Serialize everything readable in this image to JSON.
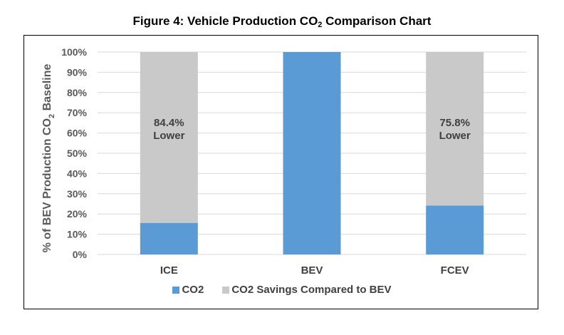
{
  "figure": {
    "title_pre": "Figure 4:  Vehicle Production CO",
    "title_sub": "2",
    "title_post": " Comparison Chart"
  },
  "chart_data": {
    "type": "bar",
    "stacked": true,
    "categories": [
      "ICE",
      "BEV",
      "FCEV"
    ],
    "series": [
      {
        "name": "CO2",
        "values": [
          15.6,
          100,
          24.2
        ],
        "color": "#5b9bd5"
      },
      {
        "name": "CO2 Savings Compared to BEV",
        "values": [
          84.4,
          0,
          75.8
        ],
        "color": "#c9c9c9"
      }
    ],
    "annotations": [
      {
        "category": "ICE",
        "line1": "84.4%",
        "line2": "Lower"
      },
      {
        "category": "FCEV",
        "line1": "75.8%",
        "line2": "Lower"
      }
    ],
    "ylabel_pre": "% of BEV Production CO",
    "ylabel_sub": "2",
    "ylabel_post": " Baseline",
    "ylim": [
      0,
      100
    ],
    "yticks": [
      "0%",
      "10%",
      "20%",
      "30%",
      "40%",
      "50%",
      "60%",
      "70%",
      "80%",
      "90%",
      "100%"
    ],
    "grid": true,
    "legend_position": "bottom"
  }
}
